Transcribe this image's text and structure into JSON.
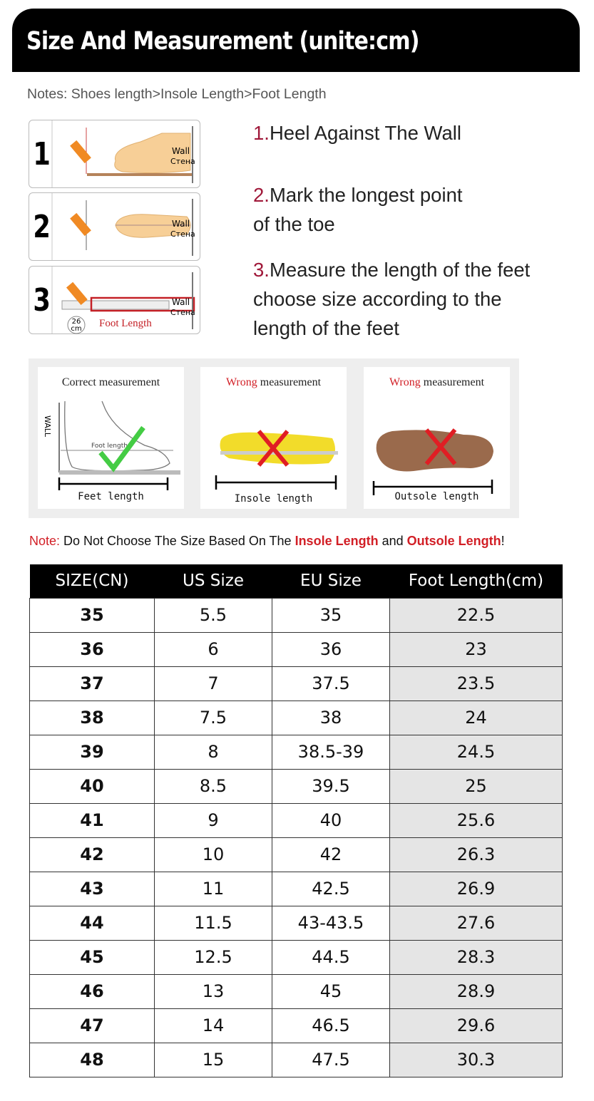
{
  "header": {
    "title": "Size And Measurement (unite:cm)"
  },
  "notes": "Notes: Shoes length>Insole Length>Foot Length",
  "steps": [
    {
      "number": "1",
      "wall": "Wall",
      "wall_ru": "Стена"
    },
    {
      "number": "2",
      "wall": "Wall",
      "wall_ru": "Стена"
    },
    {
      "number": "3",
      "wall": "Wall",
      "wall_ru": "Стена",
      "ruler_value": "26",
      "ruler_unit": "cm",
      "foot_length": "Foot Length"
    }
  ],
  "instructions": [
    {
      "num": "1.",
      "lines": [
        "Heel Against The Wall"
      ]
    },
    {
      "num": "2.",
      "lines": [
        "Mark the longest point",
        "of the toe"
      ]
    },
    {
      "num": "3.",
      "lines": [
        "Measure the length of the feet",
        "choose size according to the",
        "length of the feet"
      ]
    }
  ],
  "measurement_cards": [
    {
      "prefix": "Correct",
      "suffix": " measurement",
      "label": "Feet length",
      "wall": "WALL",
      "inner": "Foot length"
    },
    {
      "prefix": "Wrong",
      "suffix": " measurement",
      "label": "Insole length"
    },
    {
      "prefix": "Wrong",
      "suffix": " measurement",
      "label": "Outsole length"
    }
  ],
  "note": {
    "label": "Note:",
    "text1": " Do Not Choose The Size Based On The ",
    "insole": "Insole Length",
    "and": " and ",
    "outsole": "Outsole Length",
    "end": "!"
  },
  "colors": {
    "accent_red": "#d21f26",
    "step_red": "#a0193a",
    "header_bg": "#000000",
    "last_col_bg": "#e5e5e5"
  },
  "table": {
    "headers": [
      "SIZE(CN)",
      "US Size",
      "EU Size",
      "Foot Length(cm)"
    ],
    "rows": [
      [
        "35",
        "5.5",
        "35",
        "22.5"
      ],
      [
        "36",
        "6",
        "36",
        "23"
      ],
      [
        "37",
        "7",
        "37.5",
        "23.5"
      ],
      [
        "38",
        "7.5",
        "38",
        "24"
      ],
      [
        "39",
        "8",
        "38.5-39",
        "24.5"
      ],
      [
        "40",
        "8.5",
        "39.5",
        "25"
      ],
      [
        "41",
        "9",
        "40",
        "25.6"
      ],
      [
        "42",
        "10",
        "42",
        "26.3"
      ],
      [
        "43",
        "11",
        "42.5",
        "26.9"
      ],
      [
        "44",
        "11.5",
        "43-43.5",
        "27.6"
      ],
      [
        "45",
        "12.5",
        "44.5",
        "28.3"
      ],
      [
        "46",
        "13",
        "45",
        "28.9"
      ],
      [
        "47",
        "14",
        "46.5",
        "29.6"
      ],
      [
        "48",
        "15",
        "47.5",
        "30.3"
      ]
    ]
  }
}
